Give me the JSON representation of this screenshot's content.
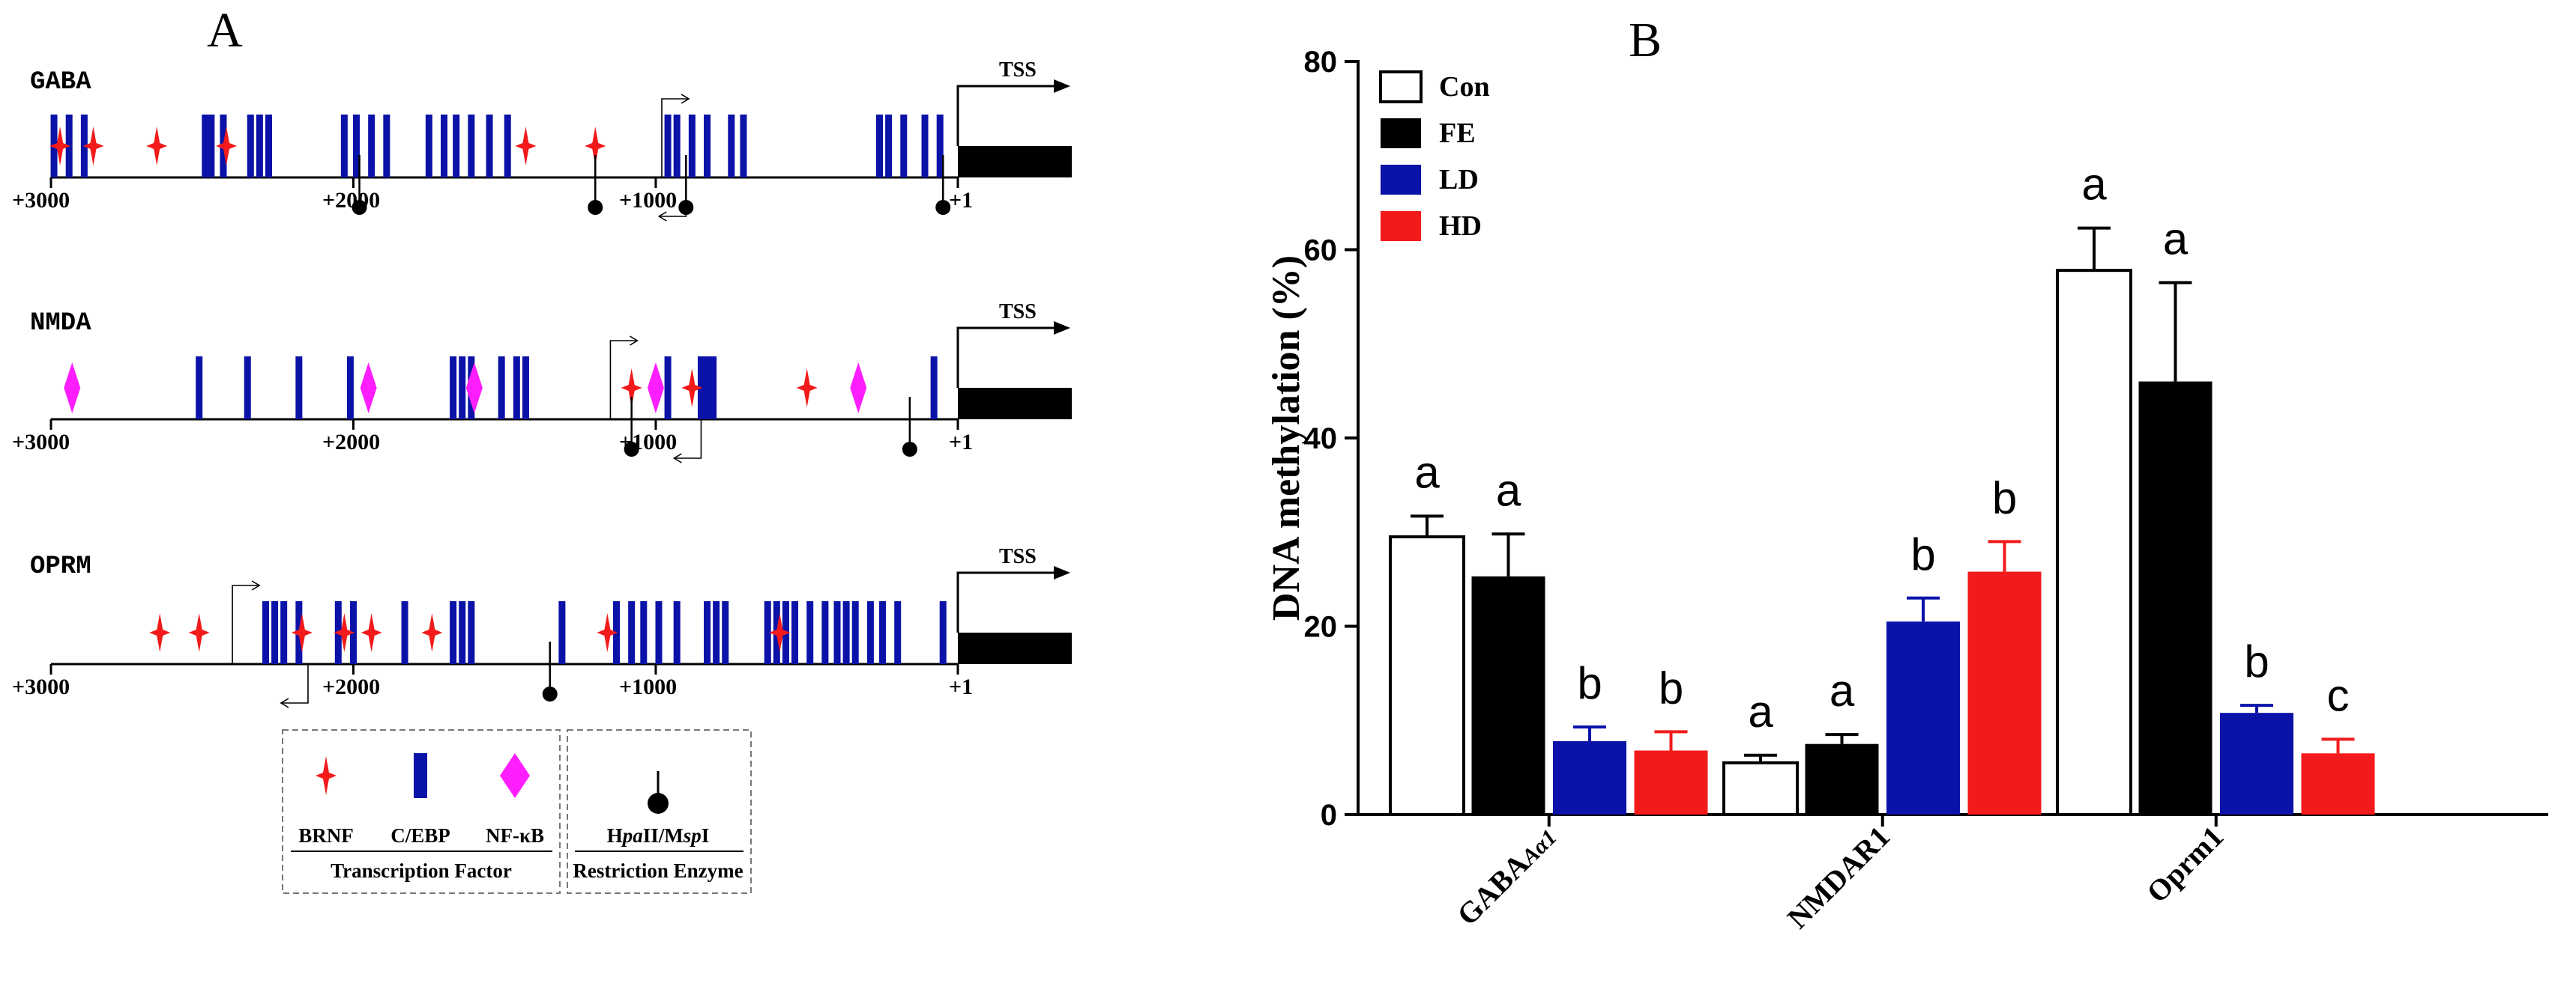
{
  "panels": {
    "a": "A",
    "b": "B"
  },
  "genes": [
    {
      "name": "GABA",
      "brnf": [
        2970,
        2860,
        2650,
        2420,
        1430,
        1200
      ],
      "cebp": [
        2990,
        2940,
        2890,
        2490,
        2470,
        2430,
        2340,
        2310,
        2280,
        2030,
        1990,
        1940,
        1890,
        1750,
        1700,
        1660,
        1610,
        1550,
        1490,
        960,
        930,
        880,
        830,
        750,
        710,
        260,
        230,
        180,
        110,
        60
      ],
      "nfkb": [],
      "enzymes": [
        1980,
        1200,
        900,
        50
      ],
      "start_arrow": {
        "pos": 980,
        "dir": "right"
      },
      "reverse_arrow": {
        "pos": 900
      },
      "labels": [
        "+3000",
        "+2000",
        "+1000",
        "+1"
      ]
    },
    {
      "name": "NMDA",
      "brnf": [
        1080,
        880,
        500
      ],
      "cebp": [
        2510,
        2350,
        2180,
        2010,
        1670,
        1640,
        1610,
        1510,
        1460,
        1430,
        960,
        850,
        830,
        810,
        80
      ],
      "nfkb": [
        2930,
        1950,
        1600,
        1000,
        330
      ],
      "enzymes": [
        1080,
        160
      ],
      "start_arrow": {
        "pos": 1150,
        "dir": "right"
      },
      "reverse_arrow": {
        "pos": 850
      },
      "labels": [
        "+3000",
        "+2000",
        "+1000",
        "+1"
      ]
    },
    {
      "name": "OPRM",
      "brnf": [
        2640,
        2510,
        2170,
        2030,
        1940,
        1740,
        1160,
        590
      ],
      "cebp": [
        2290,
        2260,
        2230,
        2180,
        2050,
        2000,
        1830,
        1670,
        1640,
        1610,
        1310,
        1130,
        1080,
        1040,
        990,
        930,
        830,
        800,
        770,
        630,
        600,
        570,
        540,
        490,
        440,
        400,
        370,
        340,
        290,
        250,
        200,
        50
      ],
      "nfkb": [],
      "enzymes": [
        1350
      ],
      "start_arrow": {
        "pos": 2400,
        "dir": "right"
      },
      "reverse_arrow": {
        "pos": 2150
      },
      "labels": [
        "+3000",
        "+2000",
        "+1000",
        "+1"
      ]
    }
  ],
  "tss_label": "TSS",
  "legend_a": {
    "tf": [
      "BRNF",
      "C/EBP",
      "NF-κB"
    ],
    "tf_title": "Transcription Factor",
    "enzyme_parts": [
      "H",
      "pa",
      "II/M",
      "sp",
      "I"
    ],
    "enzyme_title": "Restriction Enzyme"
  },
  "colors": {
    "con": "#ffffff",
    "fe": "#000000",
    "ld": "#0a12a8",
    "hd": "#f21a1a",
    "brnf": "#f21a1a",
    "cebp": "#0a12a8",
    "nfkb": "#ff1eff"
  },
  "chart_data": {
    "type": "bar",
    "title": "",
    "xlabel": "",
    "ylabel": "DNA methylation (%)",
    "ylim": [
      0,
      80
    ],
    "yticks": [
      0,
      20,
      40,
      60,
      80
    ],
    "categories": [
      [
        "GABA",
        "Aα1"
      ],
      [
        "NMDAR1"
      ],
      [
        "Oprm1"
      ]
    ],
    "series": [
      {
        "name": "Con",
        "values": [
          29.5,
          5.5,
          57.8
        ],
        "errors": [
          2.2,
          0.8,
          4.5
        ],
        "letters": [
          "a",
          "a",
          "a"
        ]
      },
      {
        "name": "FE",
        "values": [
          25.3,
          7.5,
          46.0
        ],
        "errors": [
          4.5,
          1.0,
          10.5
        ],
        "letters": [
          "a",
          "a",
          "a"
        ]
      },
      {
        "name": "LD",
        "values": [
          7.8,
          20.5,
          10.8
        ],
        "errors": [
          1.5,
          2.5,
          0.8
        ],
        "letters": [
          "b",
          "b",
          "b"
        ]
      },
      {
        "name": "HD",
        "values": [
          6.8,
          25.8,
          6.5
        ],
        "errors": [
          2.0,
          3.2,
          1.5
        ],
        "letters": [
          "b",
          "b",
          "c"
        ]
      }
    ],
    "legend_position": "top-left"
  }
}
